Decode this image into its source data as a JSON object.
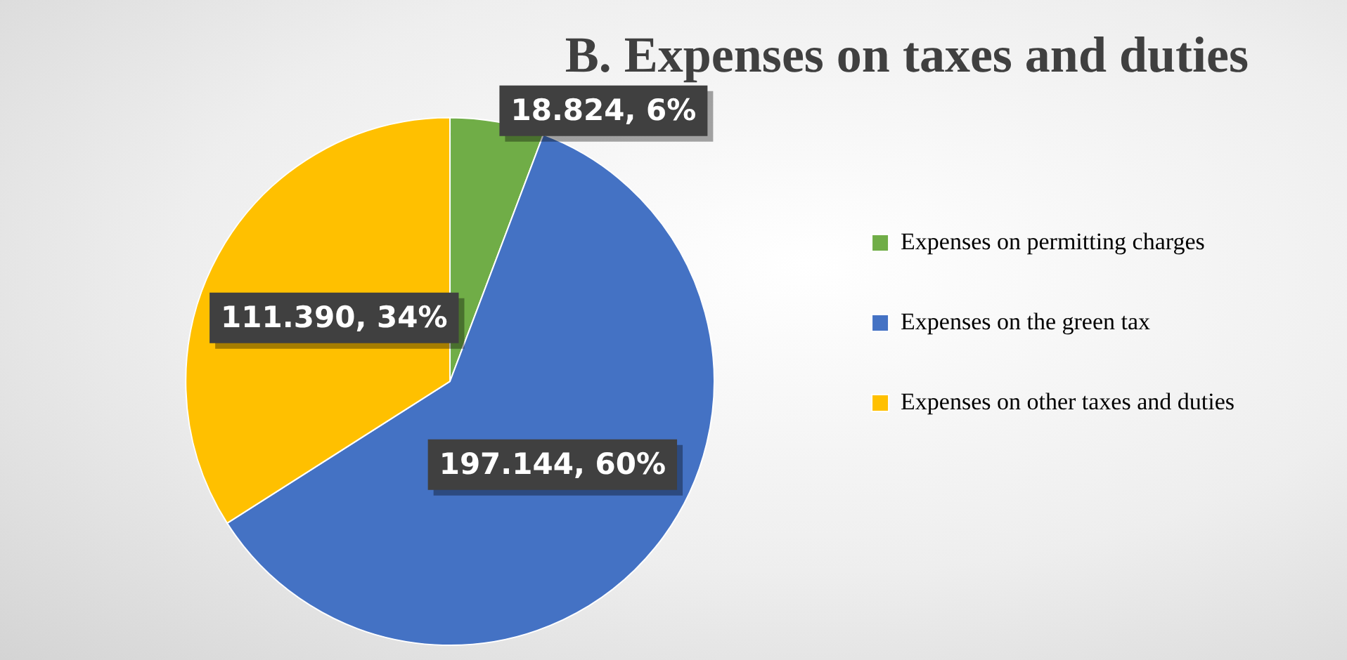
{
  "chart_data": {
    "type": "pie",
    "title": "B. Expenses on taxes and duties",
    "categories": [
      "Expenses on permitting charges",
      "Expenses on the green tax",
      "Expenses on other taxes and duties"
    ],
    "values": [
      18.824,
      197.144,
      111.39
    ],
    "colors": [
      "#70ad47",
      "#4472c4",
      "#ffc000"
    ],
    "value_labels": [
      "18.824, 6%",
      "197.144, 60%",
      "111.390, 34%"
    ],
    "legend": "right"
  }
}
